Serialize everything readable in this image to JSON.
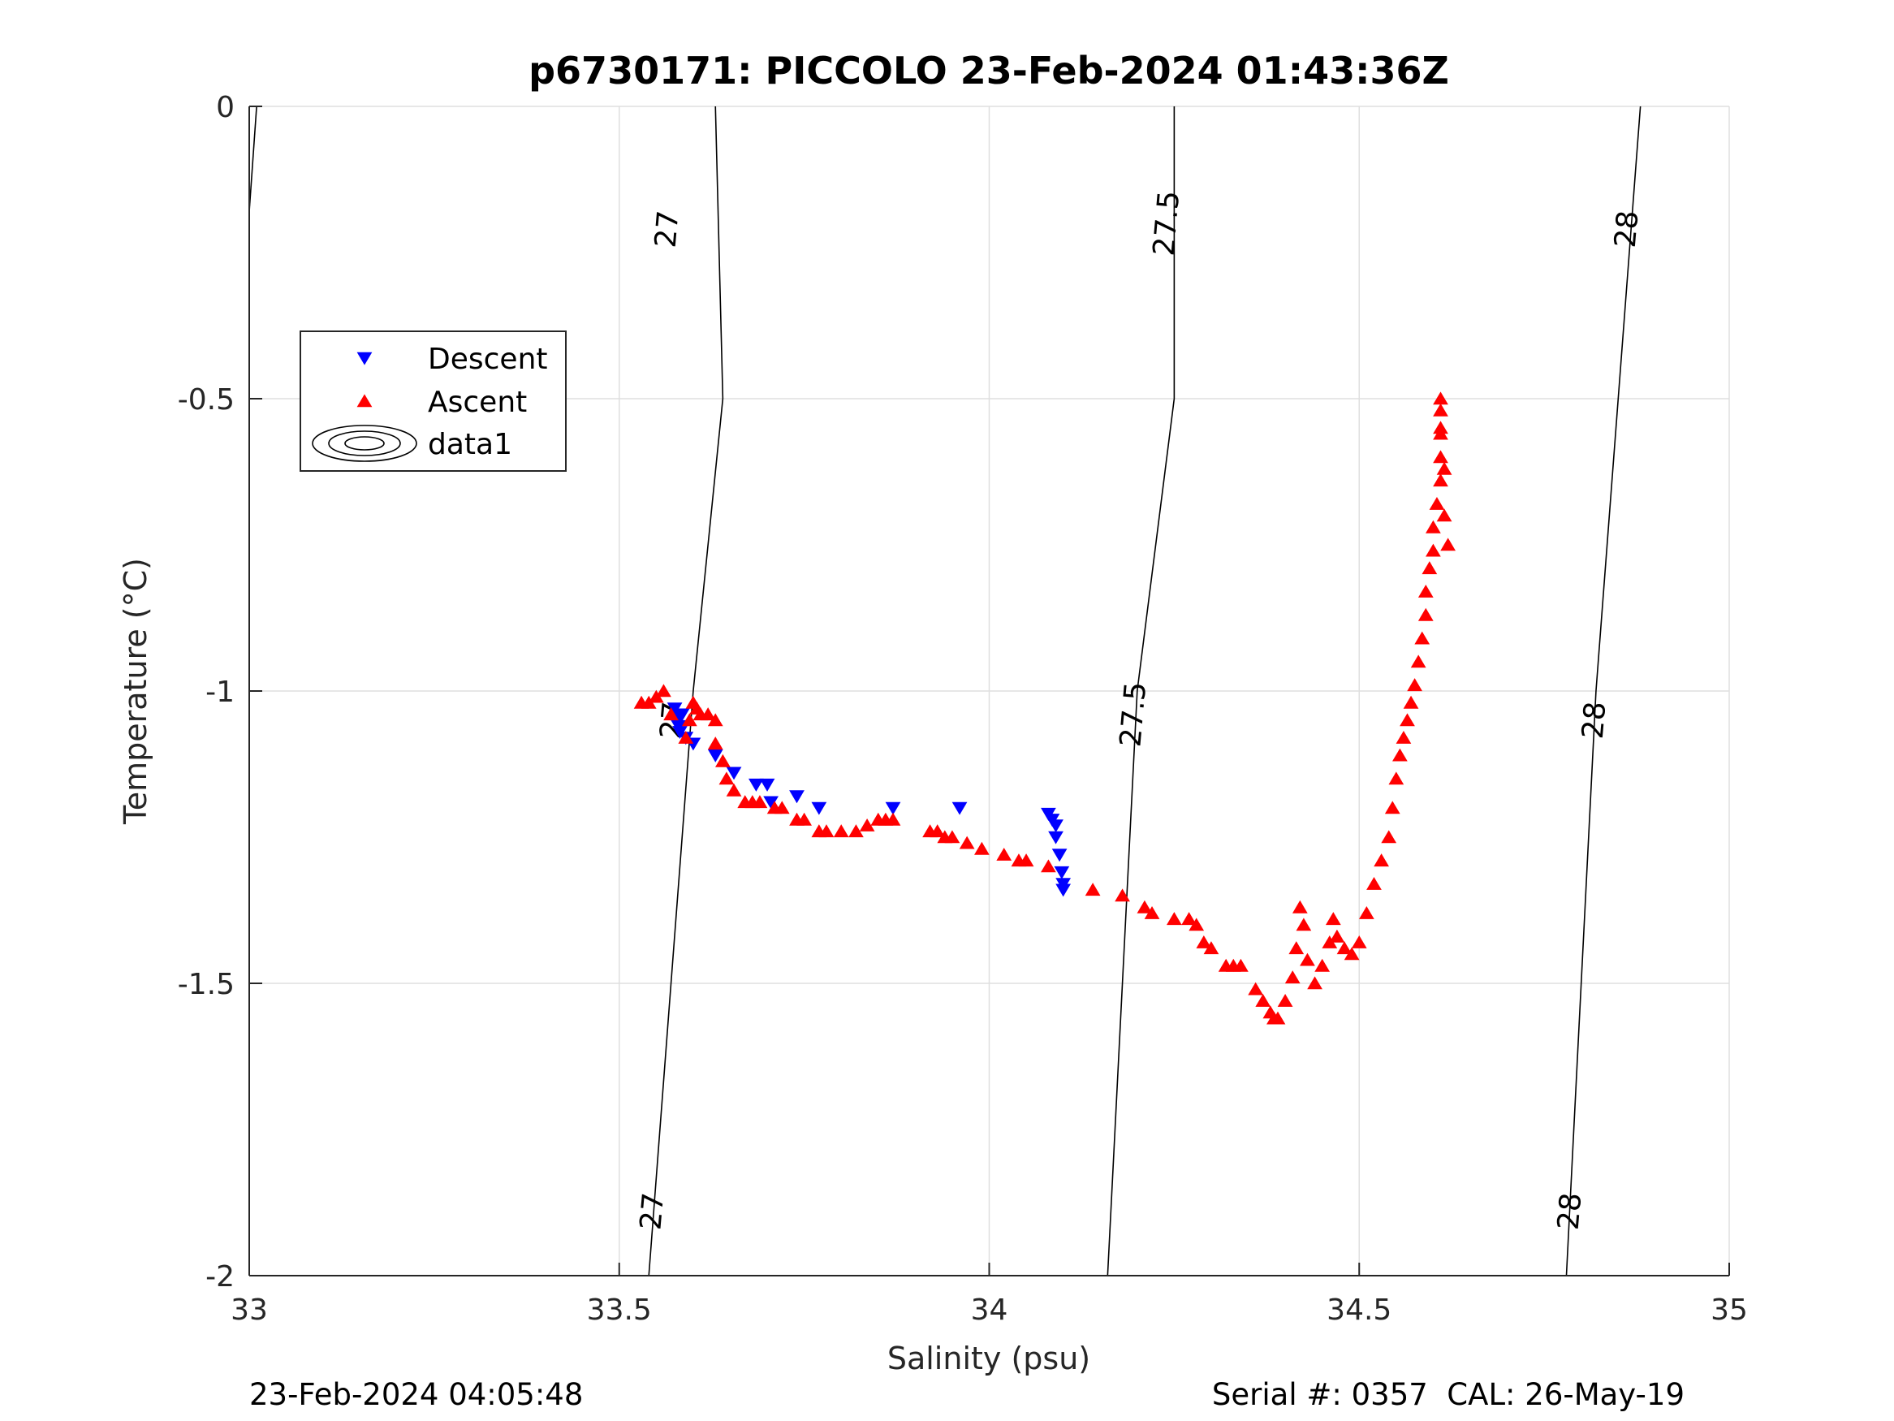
{
  "chart_data": {
    "type": "scatter",
    "title": "p6730171: PICCOLO 23-Feb-2024 01:43:36Z",
    "xlabel": "Salinity (psu)",
    "ylabel": "Temperature (°C)",
    "xlim": [
      33,
      35
    ],
    "ylim": [
      -2,
      0
    ],
    "xticks": [
      33,
      33.5,
      34,
      34.5,
      35
    ],
    "xtick_labels": [
      "33",
      "33.5",
      "34",
      "34.5",
      "35"
    ],
    "yticks": [
      0,
      -0.5,
      -1,
      -1.5,
      -2
    ],
    "ytick_labels": [
      "0",
      "-0.5",
      "-1",
      "-1.5",
      "-2"
    ],
    "grid": true,
    "legend_position": "upper-left",
    "legend": [
      {
        "label": "Descent",
        "marker": "triangle-down",
        "color": "#0000ff"
      },
      {
        "label": "Ascent",
        "marker": "triangle-up",
        "color": "#ff0000"
      },
      {
        "label": "data1",
        "marker": "contour-ellipses",
        "color": "#000000"
      }
    ],
    "series": [
      {
        "name": "Descent",
        "marker": "triangle-down",
        "color": "#0000ff",
        "points": [
          [
            33.575,
            -1.03
          ],
          [
            33.578,
            -1.04
          ],
          [
            33.58,
            -1.05
          ],
          [
            33.58,
            -1.06
          ],
          [
            33.582,
            -1.07
          ],
          [
            33.585,
            -1.04
          ],
          [
            33.59,
            -1.08
          ],
          [
            33.6,
            -1.09
          ],
          [
            33.63,
            -1.11
          ],
          [
            33.655,
            -1.14
          ],
          [
            33.685,
            -1.16
          ],
          [
            33.7,
            -1.16
          ],
          [
            33.705,
            -1.19
          ],
          [
            33.74,
            -1.18
          ],
          [
            33.77,
            -1.2
          ],
          [
            33.87,
            -1.2
          ],
          [
            33.96,
            -1.2
          ],
          [
            34.08,
            -1.21
          ],
          [
            34.085,
            -1.22
          ],
          [
            34.09,
            -1.23
          ],
          [
            34.09,
            -1.25
          ],
          [
            34.095,
            -1.28
          ],
          [
            34.098,
            -1.31
          ],
          [
            34.1,
            -1.33
          ],
          [
            34.1,
            -1.34
          ]
        ]
      },
      {
        "name": "Ascent",
        "marker": "triangle-up",
        "color": "#ff0000",
        "points": [
          [
            33.53,
            -1.02
          ],
          [
            33.54,
            -1.02
          ],
          [
            33.55,
            -1.01
          ],
          [
            33.56,
            -1.0
          ],
          [
            33.57,
            -1.04
          ],
          [
            33.59,
            -1.08
          ],
          [
            33.595,
            -1.05
          ],
          [
            33.6,
            -1.02
          ],
          [
            33.605,
            -1.03
          ],
          [
            33.61,
            -1.04
          ],
          [
            33.62,
            -1.04
          ],
          [
            33.63,
            -1.05
          ],
          [
            33.63,
            -1.09
          ],
          [
            33.64,
            -1.12
          ],
          [
            33.645,
            -1.15
          ],
          [
            33.655,
            -1.17
          ],
          [
            33.67,
            -1.19
          ],
          [
            33.68,
            -1.19
          ],
          [
            33.69,
            -1.19
          ],
          [
            33.71,
            -1.2
          ],
          [
            33.72,
            -1.2
          ],
          [
            33.74,
            -1.22
          ],
          [
            33.75,
            -1.22
          ],
          [
            33.77,
            -1.24
          ],
          [
            33.78,
            -1.24
          ],
          [
            33.8,
            -1.24
          ],
          [
            33.82,
            -1.24
          ],
          [
            33.835,
            -1.23
          ],
          [
            33.85,
            -1.22
          ],
          [
            33.86,
            -1.22
          ],
          [
            33.87,
            -1.22
          ],
          [
            33.92,
            -1.24
          ],
          [
            33.93,
            -1.24
          ],
          [
            33.94,
            -1.25
          ],
          [
            33.95,
            -1.25
          ],
          [
            33.97,
            -1.26
          ],
          [
            33.99,
            -1.27
          ],
          [
            34.02,
            -1.28
          ],
          [
            34.04,
            -1.29
          ],
          [
            34.05,
            -1.29
          ],
          [
            34.08,
            -1.3
          ],
          [
            34.14,
            -1.34
          ],
          [
            34.18,
            -1.35
          ],
          [
            34.21,
            -1.37
          ],
          [
            34.22,
            -1.38
          ],
          [
            34.25,
            -1.39
          ],
          [
            34.27,
            -1.39
          ],
          [
            34.28,
            -1.4
          ],
          [
            34.29,
            -1.43
          ],
          [
            34.3,
            -1.44
          ],
          [
            34.32,
            -1.47
          ],
          [
            34.33,
            -1.47
          ],
          [
            34.34,
            -1.47
          ],
          [
            34.36,
            -1.51
          ],
          [
            34.37,
            -1.53
          ],
          [
            34.38,
            -1.55
          ],
          [
            34.385,
            -1.56
          ],
          [
            34.39,
            -1.56
          ],
          [
            34.4,
            -1.53
          ],
          [
            34.41,
            -1.49
          ],
          [
            34.415,
            -1.44
          ],
          [
            34.42,
            -1.37
          ],
          [
            34.425,
            -1.4
          ],
          [
            34.43,
            -1.46
          ],
          [
            34.44,
            -1.5
          ],
          [
            34.45,
            -1.47
          ],
          [
            34.46,
            -1.43
          ],
          [
            34.465,
            -1.39
          ],
          [
            34.47,
            -1.42
          ],
          [
            34.48,
            -1.44
          ],
          [
            34.49,
            -1.45
          ],
          [
            34.5,
            -1.43
          ],
          [
            34.51,
            -1.38
          ],
          [
            34.52,
            -1.33
          ],
          [
            34.53,
            -1.29
          ],
          [
            34.54,
            -1.25
          ],
          [
            34.545,
            -1.2
          ],
          [
            34.55,
            -1.15
          ],
          [
            34.555,
            -1.11
          ],
          [
            34.56,
            -1.08
          ],
          [
            34.565,
            -1.05
          ],
          [
            34.57,
            -1.02
          ],
          [
            34.575,
            -0.99
          ],
          [
            34.58,
            -0.95
          ],
          [
            34.585,
            -0.91
          ],
          [
            34.59,
            -0.87
          ],
          [
            34.59,
            -0.83
          ],
          [
            34.595,
            -0.79
          ],
          [
            34.6,
            -0.76
          ],
          [
            34.6,
            -0.72
          ],
          [
            34.605,
            -0.68
          ],
          [
            34.61,
            -0.64
          ],
          [
            34.61,
            -0.6
          ],
          [
            34.61,
            -0.56
          ],
          [
            34.61,
            -0.52
          ],
          [
            34.61,
            -0.5
          ],
          [
            34.61,
            -0.55
          ],
          [
            34.615,
            -0.62
          ],
          [
            34.615,
            -0.7
          ],
          [
            34.62,
            -0.75
          ]
        ]
      }
    ],
    "contours": [
      {
        "level": 27,
        "label": "27",
        "segments": [
          [
            [
              33.54,
              -2
            ],
            [
              33.6,
              -1
            ],
            [
              33.64,
              -0.5
            ],
            [
              33.63,
              0
            ]
          ]
        ]
      },
      {
        "level": 27.5,
        "label": "27.5",
        "segments": [
          [
            [
              34.16,
              -2
            ],
            [
              34.2,
              -1
            ],
            [
              34.25,
              -0.5
            ],
            [
              34.25,
              0
            ]
          ]
        ]
      },
      {
        "level": 28,
        "label": "28",
        "segments": [
          [
            [
              34.78,
              -2
            ],
            [
              34.82,
              -1
            ],
            [
              34.85,
              -0.5
            ],
            [
              34.88,
              0
            ]
          ]
        ]
      },
      {
        "level": 26.5,
        "label": "",
        "segments": [
          [
            [
              33.0,
              -0.18
            ],
            [
              33.01,
              0
            ]
          ]
        ]
      }
    ],
    "contour_labels": [
      {
        "text": "27",
        "x": 33.565,
        "y": -0.21
      },
      {
        "text": "27",
        "x": 33.545,
        "y": -1.89
      },
      {
        "text": "27",
        "x": 33.572,
        "y": -1.05
      },
      {
        "text": "27.5",
        "x": 34.24,
        "y": -0.2
      },
      {
        "text": "27.5",
        "x": 34.195,
        "y": -1.04
      },
      {
        "text": "28",
        "x": 34.862,
        "y": -0.21
      },
      {
        "text": "28",
        "x": 34.818,
        "y": -1.05
      },
      {
        "text": "28",
        "x": 34.785,
        "y": -1.89
      }
    ]
  },
  "footer": {
    "left": "23-Feb-2024 04:05:48",
    "right": "Serial #: 0357  CAL: 26-May-19"
  }
}
